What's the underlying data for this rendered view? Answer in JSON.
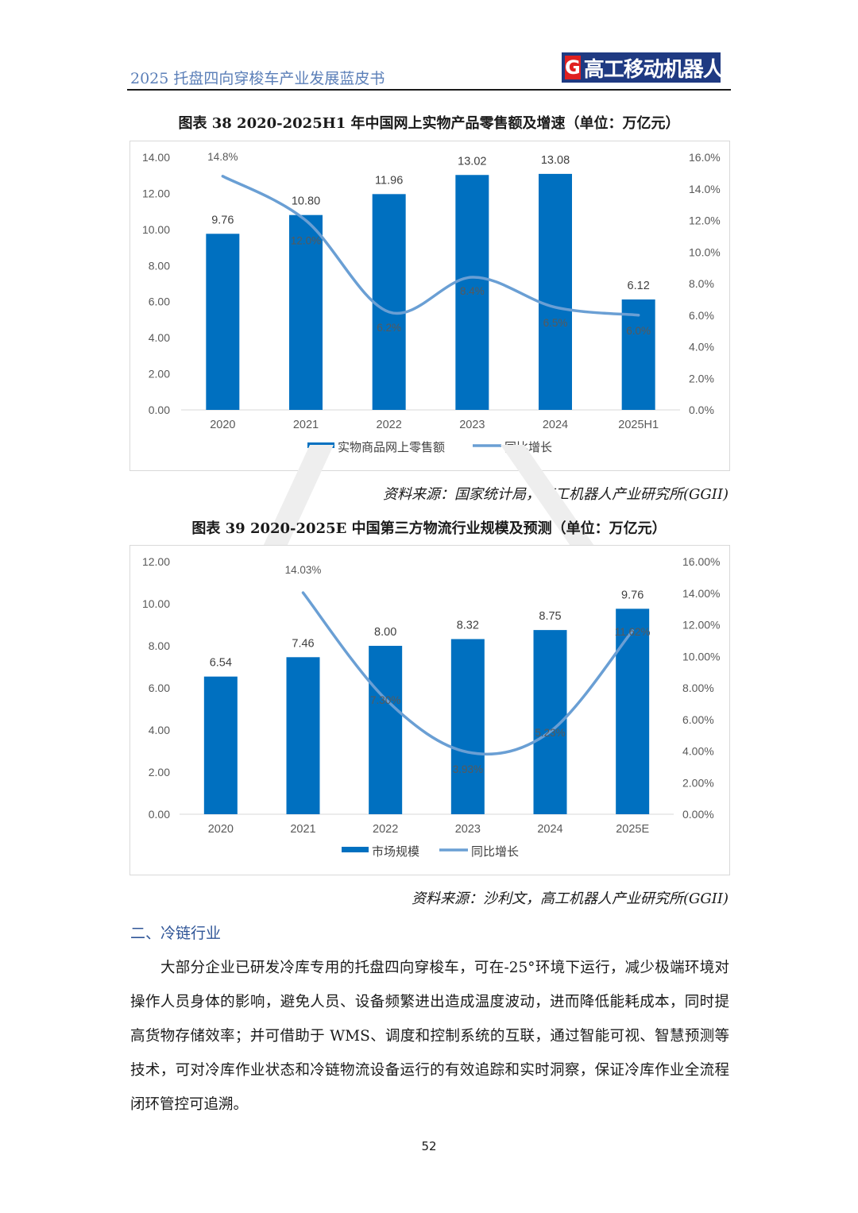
{
  "header": {
    "title": "2025 托盘四向穿梭车产业发展蓝皮书",
    "logo_mark": "G",
    "logo_text": "高工移动机器人"
  },
  "figure38": {
    "caption": "图表 38   2020-2025H1 年中国网上实物产品零售额及增速（单位：万亿元）",
    "source": "资料来源：国家统计局，高工机器人产业研究所(GGII)"
  },
  "figure39": {
    "caption": "图表 39   2020-2025E 中国第三方物流行业规模及预测（单位：万亿元）",
    "source": "资料来源：沙利文，高工机器人产业研究所(GGII)"
  },
  "chart_data": [
    {
      "type": "bar",
      "categories": [
        "2020",
        "2021",
        "2022",
        "2023",
        "2024",
        "2025H1"
      ],
      "series": [
        {
          "name": "实物商品网上零售额",
          "values": [
            9.76,
            10.8,
            11.96,
            13.02,
            13.08,
            6.12
          ],
          "labels": [
            "9.76",
            "10.80",
            "11.96",
            "13.02",
            "13.08",
            "6.12"
          ],
          "axis": "left",
          "color": "#0070c0"
        },
        {
          "name": "同比增长",
          "type": "line",
          "values": [
            14.8,
            12.0,
            6.2,
            8.4,
            6.5,
            6.0
          ],
          "labels": [
            "14.8%",
            "12.0%",
            "6.2%",
            "8.4%",
            "6.5%",
            "6.0%"
          ],
          "axis": "right",
          "color": "#6a9fd4"
        }
      ],
      "ylim": [
        0,
        14
      ],
      "yticks": [
        "0.00",
        "2.00",
        "4.00",
        "6.00",
        "8.00",
        "10.00",
        "12.00",
        "14.00"
      ],
      "y2lim": [
        0,
        16
      ],
      "y2ticks": [
        "0.0%",
        "2.0%",
        "4.0%",
        "6.0%",
        "8.0%",
        "10.0%",
        "12.0%",
        "14.0%",
        "16.0%"
      ],
      "legend": "bottom",
      "grid": false
    },
    {
      "type": "bar",
      "categories": [
        "2020",
        "2021",
        "2022",
        "2023",
        "2024",
        "2025E"
      ],
      "series": [
        {
          "name": "市场规模",
          "values": [
            6.54,
            7.46,
            8.0,
            8.32,
            8.75,
            9.76
          ],
          "labels": [
            "6.54",
            "7.46",
            "8.00",
            "8.32",
            "8.75",
            "9.76"
          ],
          "axis": "left",
          "color": "#0070c0"
        },
        {
          "name": "同比增长",
          "type": "line",
          "values": [
            null,
            14.03,
            7.3,
            3.93,
            5.23,
            11.62
          ],
          "labels": [
            "",
            "14.03%",
            "7.30%",
            "3.93%",
            "5.23%",
            "11.62%"
          ],
          "axis": "right",
          "color": "#6a9fd4"
        }
      ],
      "ylim": [
        0,
        12
      ],
      "yticks": [
        "0.00",
        "2.00",
        "4.00",
        "6.00",
        "8.00",
        "10.00",
        "12.00"
      ],
      "y2lim": [
        0,
        16
      ],
      "y2ticks": [
        "0.00%",
        "2.00%",
        "4.00%",
        "6.00%",
        "8.00%",
        "10.00%",
        "12.00%",
        "14.00%",
        "16.00%"
      ],
      "legend": "bottom",
      "grid": false
    }
  ],
  "section_title": "二、冷链行业",
  "paragraph": "大部分企业已研发冷库专用的托盘四向穿梭车，可在-25°环境下运行，减少极端环境对操作人员身体的影响，避免人员、设备频繁进出造成温度波动，进而降低能耗成本，同时提高货物存储效率；并可借助于 WMS、调度和控制系统的互联，通过智能可视、智慧预测等技术，可对冷库作业状态和冷链物流设备运行的有效追踪和实时洞察，保证冷库作业全流程闭环管控可追溯。",
  "page_number": "52"
}
